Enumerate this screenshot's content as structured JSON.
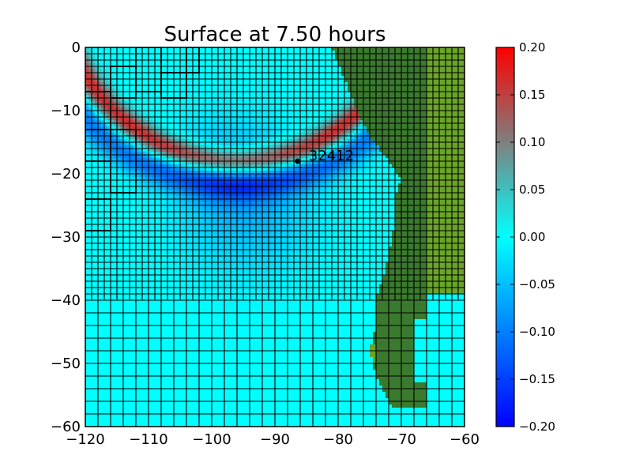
{
  "chart_data": {
    "type": "heatmap",
    "title": "Surface at 7.50 hours",
    "xlabel": "",
    "ylabel": "",
    "xlim": [
      -120,
      -60
    ],
    "ylim": [
      -60,
      0
    ],
    "xticks": [
      -120,
      -110,
      -100,
      -90,
      -80,
      -70,
      -60
    ],
    "xtick_labels": [
      "−120",
      "−110",
      "−100",
      "−90",
      "−80",
      "−70",
      "−60"
    ],
    "yticks": [
      0,
      -10,
      -20,
      -30,
      -40,
      -50,
      -60
    ],
    "ytick_labels": [
      "0",
      "−10",
      "−20",
      "−30",
      "−40",
      "−50",
      "−60"
    ],
    "grid": false,
    "colorbar": {
      "vmin": -0.2,
      "vmax": 0.2,
      "ticks": [
        -0.2,
        -0.15,
        -0.1,
        -0.05,
        0.0,
        0.05,
        0.1,
        0.15,
        0.2
      ],
      "tick_labels": [
        "−0.20",
        "−0.15",
        "−0.10",
        "−0.05",
        "0.00",
        "0.05",
        "0.10",
        "0.15",
        "0.20"
      ],
      "colors": [
        "#0000ff",
        "#00ffff",
        "#ff0000"
      ]
    },
    "annotation": {
      "label": "32412",
      "x": -86.4,
      "y": -18.0
    },
    "colors": {
      "water": "#00ffff",
      "land_dark": "#3a7a2e",
      "land_light": "#6aa52a",
      "grid_line": "#000000"
    },
    "wave_front": {
      "center": [
        -96,
        10
      ],
      "radius": 29,
      "peak_amplitude": 0.17,
      "trough_amplitude": -0.1,
      "secondary_trough_amplitude": -0.055
    },
    "coarse_cell_deg": 2.0,
    "fine_cell_deg": 1.0
  }
}
